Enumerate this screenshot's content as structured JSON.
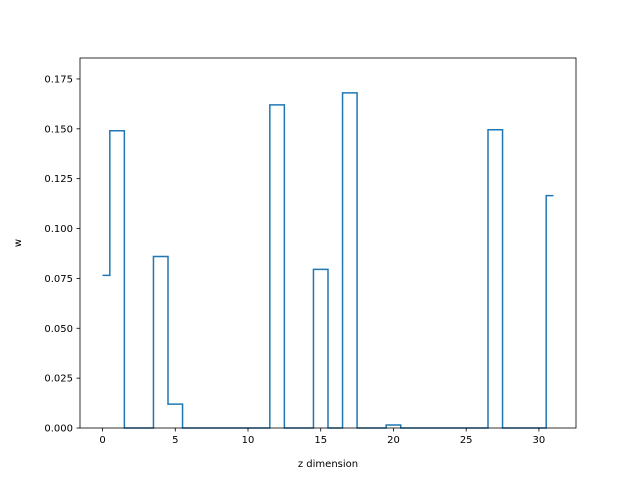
{
  "chart_data": {
    "type": "line",
    "style": "step-mid",
    "title": "",
    "xlabel": "z dimension",
    "ylabel": "w",
    "xlim": [
      -1.55,
      32.55
    ],
    "ylim": [
      0,
      0.1855
    ],
    "grid": false,
    "x_ticks": [
      0,
      5,
      10,
      15,
      20,
      25,
      30
    ],
    "x_tick_labels": [
      "0",
      "5",
      "10",
      "15",
      "20",
      "25",
      "30"
    ],
    "y_ticks": [
      0,
      0.025,
      0.05,
      0.075,
      0.1,
      0.125,
      0.15,
      0.175
    ],
    "y_tick_labels": [
      "0.000",
      "0.025",
      "0.050",
      "0.075",
      "0.100",
      "0.125",
      "0.150",
      "0.175"
    ],
    "series": [
      {
        "color": "#1f77b4",
        "x": [
          0,
          1,
          2,
          3,
          4,
          5,
          6,
          7,
          8,
          9,
          10,
          11,
          12,
          13,
          14,
          15,
          16,
          17,
          18,
          19,
          20,
          21,
          22,
          23,
          24,
          25,
          26,
          27,
          28,
          29,
          30,
          31
        ],
        "values": [
          0.0765,
          0.149,
          0,
          0,
          0.086,
          0.012,
          0,
          0,
          0,
          0,
          0,
          0,
          0.162,
          0,
          0,
          0.0795,
          0,
          0.168,
          0,
          0,
          0.0015,
          0,
          0,
          0,
          0,
          0,
          0,
          0.1495,
          0,
          0,
          0,
          0.1165
        ]
      }
    ]
  }
}
